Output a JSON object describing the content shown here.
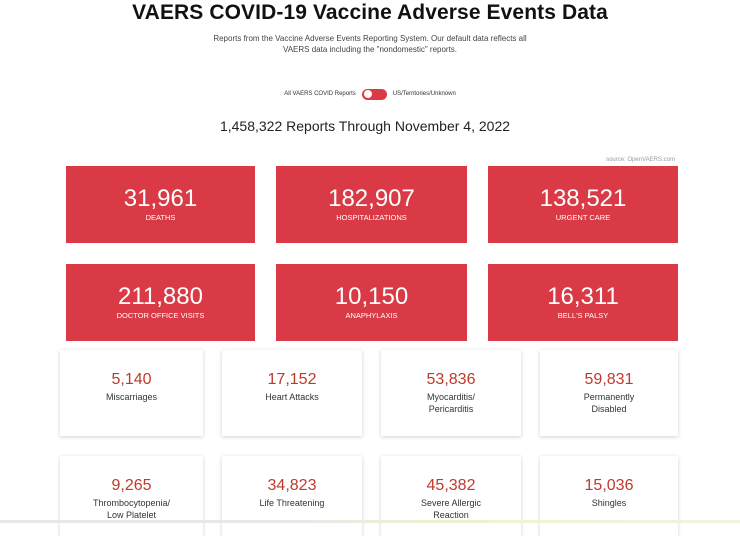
{
  "header": {
    "title": "VAERS COVID-19 Vaccine Adverse Events Data",
    "subtitle": "Reports from the Vaccine Adverse Events Reporting System. Our default data reflects all VAERS data including the \"nondomestic\" reports."
  },
  "toggle": {
    "left_label": "All VAERS COVID Reports",
    "right_label": "US/Territories/Unknown"
  },
  "summary": "1,458,322 Reports Through November 4, 2022",
  "source": "source: OpenVAERS.com",
  "red_cards": [
    {
      "value": "31,961",
      "label": "DEATHS"
    },
    {
      "value": "182,907",
      "label": "HOSPITALIZATIONS"
    },
    {
      "value": "138,521",
      "label": "URGENT CARE"
    },
    {
      "value": "211,880",
      "label": "DOCTOR OFFICE VISITS"
    },
    {
      "value": "10,150",
      "label": "ANAPHYLAXIS"
    },
    {
      "value": "16,311",
      "label": "BELL'S PALSY"
    }
  ],
  "white_cards": [
    {
      "value": "5,140",
      "line1": "Miscarriages",
      "line2": ""
    },
    {
      "value": "17,152",
      "line1": "Heart Attacks",
      "line2": ""
    },
    {
      "value": "53,836",
      "line1": "Myocarditis/",
      "line2": "Pericarditis"
    },
    {
      "value": "59,831",
      "line1": "Permanently",
      "line2": "Disabled"
    },
    {
      "value": "9,265",
      "line1": "Thrombocytopenia/",
      "line2": "Low Platelet"
    },
    {
      "value": "34,823",
      "line1": "Life Threatening",
      "line2": ""
    },
    {
      "value": "45,382",
      "line1": "Severe Allergic",
      "line2": "Reaction"
    },
    {
      "value": "15,036",
      "line1": "Shingles",
      "line2": ""
    }
  ],
  "colors": {
    "accent_red": "#d93a46",
    "number_red": "#c0392b"
  }
}
